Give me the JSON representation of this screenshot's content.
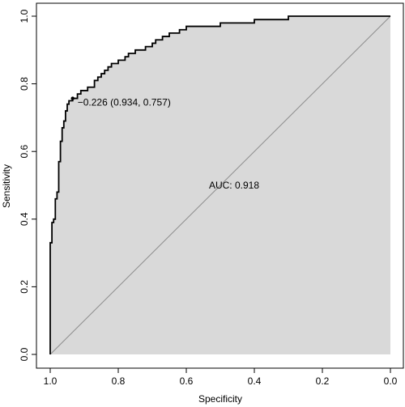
{
  "chart_data": {
    "type": "line",
    "xlabel": "Specificity",
    "ylabel": "Sensitivity",
    "xlim": [
      1.0,
      0.0
    ],
    "ylim": [
      0.0,
      1.0
    ],
    "x_reversed": true,
    "x_ticks": [
      "1.0",
      "0.8",
      "0.6",
      "0.4",
      "0.2",
      "0.0"
    ],
    "y_ticks": [
      "0.0",
      "0.2",
      "0.4",
      "0.6",
      "0.8",
      "1.0"
    ],
    "grid": false,
    "legend": "none",
    "auc_area_fill": "#d9d9d9",
    "curve_color": "#000000",
    "diagonal_color": "#8c8c8c",
    "diagonal": {
      "from": [
        1.0,
        0.0
      ],
      "to": [
        0.0,
        1.0
      ]
    },
    "series": [
      {
        "x": [
          1.0,
          1.0,
          0.995,
          0.995,
          0.99,
          0.99,
          0.985,
          0.985,
          0.98,
          0.98,
          0.975,
          0.975,
          0.97,
          0.97,
          0.965,
          0.965,
          0.96,
          0.96,
          0.955,
          0.955,
          0.95,
          0.95,
          0.945,
          0.945,
          0.934,
          0.934,
          0.92,
          0.92,
          0.91,
          0.91,
          0.89,
          0.89,
          0.87,
          0.87,
          0.86,
          0.86,
          0.85,
          0.85,
          0.84,
          0.84,
          0.83,
          0.83,
          0.82,
          0.82,
          0.8,
          0.8,
          0.78,
          0.78,
          0.77,
          0.77,
          0.75,
          0.75,
          0.72,
          0.72,
          0.7,
          0.7,
          0.69,
          0.69,
          0.67,
          0.67,
          0.65,
          0.65,
          0.62,
          0.62,
          0.6,
          0.6,
          0.55,
          0.55,
          0.5,
          0.5,
          0.45,
          0.45,
          0.4,
          0.4,
          0.35,
          0.35,
          0.3,
          0.3,
          0.2,
          0.2,
          0.0
        ],
        "y": [
          0.0,
          0.33,
          0.33,
          0.39,
          0.39,
          0.4,
          0.4,
          0.46,
          0.46,
          0.48,
          0.48,
          0.57,
          0.57,
          0.63,
          0.63,
          0.67,
          0.67,
          0.69,
          0.69,
          0.72,
          0.72,
          0.74,
          0.74,
          0.75,
          0.75,
          0.757,
          0.757,
          0.77,
          0.77,
          0.78,
          0.78,
          0.79,
          0.79,
          0.81,
          0.81,
          0.82,
          0.82,
          0.83,
          0.83,
          0.84,
          0.84,
          0.85,
          0.85,
          0.86,
          0.86,
          0.87,
          0.87,
          0.88,
          0.88,
          0.89,
          0.89,
          0.9,
          0.9,
          0.91,
          0.91,
          0.92,
          0.92,
          0.93,
          0.93,
          0.94,
          0.94,
          0.95,
          0.95,
          0.96,
          0.96,
          0.97,
          0.97,
          0.97,
          0.97,
          0.98,
          0.98,
          0.98,
          0.98,
          0.99,
          0.99,
          0.99,
          0.99,
          1.0,
          1.0,
          1.0,
          1.0
        ]
      }
    ],
    "threshold_point": {
      "x": 0.934,
      "y": 0.757
    },
    "annotations": {
      "threshold": "−0.226 (0.934, 0.757)",
      "auc": "AUC: 0.918"
    }
  }
}
